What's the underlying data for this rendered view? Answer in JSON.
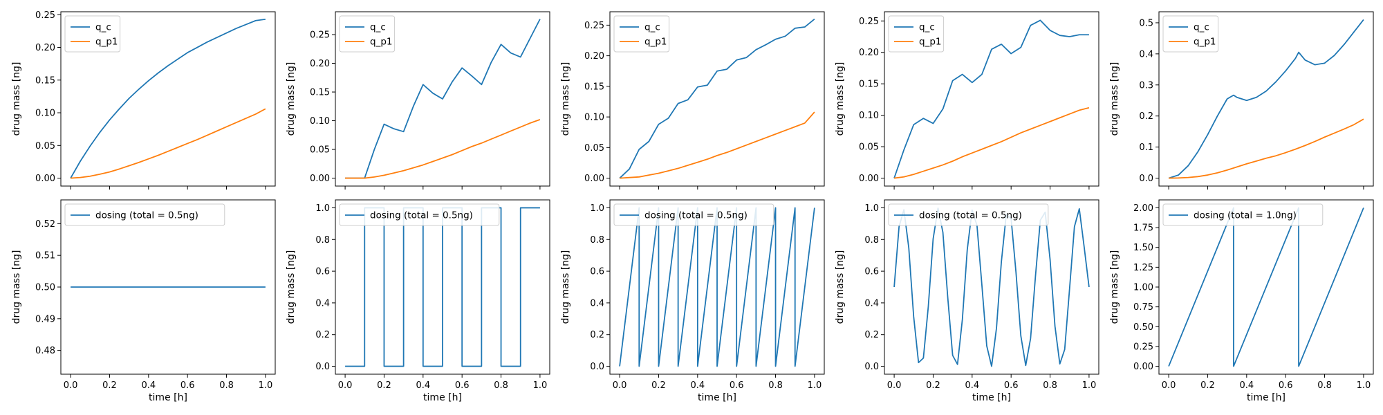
{
  "colors": {
    "blue": "#1f77b4",
    "orange": "#ff7f0e"
  },
  "chart_data": [
    {
      "type": "line",
      "row": 0,
      "col": 0,
      "xlim": [
        -0.05,
        1.05
      ],
      "ylim": [
        -0.0121,
        0.2545
      ],
      "yticks": [
        0.0,
        0.05,
        0.1,
        0.15,
        0.2,
        0.25
      ],
      "ytick_decimals": 2,
      "xticks": [
        0.0,
        0.2,
        0.4,
        0.6,
        0.8,
        1.0
      ],
      "show_xticklabels": false,
      "xlabel": "",
      "ylabel": "drug mass [ng]",
      "grid": false,
      "legend_loc": "upper-left",
      "series": [
        {
          "name": "q_c",
          "color": "#1f77b4",
          "x": [
            0,
            0.05,
            0.1,
            0.15,
            0.2,
            0.25,
            0.3,
            0.35,
            0.4,
            0.45,
            0.5,
            0.55,
            0.6,
            0.65,
            0.7,
            0.75,
            0.8,
            0.85,
            0.9,
            0.95,
            1.0
          ],
          "y": [
            0,
            0.026,
            0.049,
            0.07,
            0.089,
            0.106,
            0.122,
            0.136,
            0.149,
            0.161,
            0.172,
            0.182,
            0.192,
            0.2,
            0.208,
            0.215,
            0.222,
            0.229,
            0.235,
            0.241,
            0.243
          ]
        },
        {
          "name": "q_p1",
          "color": "#ff7f0e",
          "x": [
            0,
            0.05,
            0.1,
            0.15,
            0.2,
            0.25,
            0.3,
            0.35,
            0.4,
            0.45,
            0.5,
            0.55,
            0.6,
            0.65,
            0.7,
            0.75,
            0.8,
            0.85,
            0.9,
            0.95,
            1.0
          ],
          "y": [
            0,
            0.001,
            0.003,
            0.006,
            0.0095,
            0.014,
            0.019,
            0.024,
            0.0295,
            0.035,
            0.041,
            0.047,
            0.053,
            0.059,
            0.0655,
            0.072,
            0.0785,
            0.085,
            0.0915,
            0.098,
            0.106
          ]
        }
      ]
    },
    {
      "type": "line",
      "row": 0,
      "col": 1,
      "xlim": [
        -0.05,
        1.05
      ],
      "ylim": [
        -0.0138,
        0.2898
      ],
      "yticks": [
        0.0,
        0.05,
        0.1,
        0.15,
        0.2,
        0.25
      ],
      "ytick_decimals": 2,
      "xticks": [
        0.0,
        0.2,
        0.4,
        0.6,
        0.8,
        1.0
      ],
      "show_xticklabels": false,
      "xlabel": "",
      "ylabel": "drug mass [ng]",
      "grid": false,
      "legend_loc": "upper-left",
      "series": [
        {
          "name": "q_c",
          "color": "#1f77b4",
          "x": [
            0,
            0.1,
            0.15,
            0.2,
            0.25,
            0.3,
            0.35,
            0.4,
            0.45,
            0.5,
            0.55,
            0.6,
            0.65,
            0.7,
            0.75,
            0.8,
            0.85,
            0.9,
            0.95,
            1.0
          ],
          "y": [
            0,
            0,
            0.05,
            0.094,
            0.086,
            0.081,
            0.125,
            0.163,
            0.148,
            0.138,
            0.168,
            0.192,
            0.178,
            0.163,
            0.202,
            0.233,
            0.218,
            0.211,
            0.244,
            0.277
          ]
        },
        {
          "name": "q_p1",
          "color": "#ff7f0e",
          "x": [
            0,
            0.1,
            0.15,
            0.2,
            0.25,
            0.3,
            0.35,
            0.4,
            0.45,
            0.5,
            0.55,
            0.6,
            0.65,
            0.7,
            0.75,
            0.8,
            0.85,
            0.9,
            0.95,
            1.0
          ],
          "y": [
            0,
            0,
            0.002,
            0.005,
            0.009,
            0.013,
            0.018,
            0.023,
            0.029,
            0.035,
            0.041,
            0.048,
            0.055,
            0.061,
            0.068,
            0.075,
            0.082,
            0.089,
            0.096,
            0.102
          ]
        }
      ]
    },
    {
      "type": "line",
      "row": 0,
      "col": 2,
      "xlim": [
        -0.05,
        1.05
      ],
      "ylim": [
        -0.0129,
        0.2719
      ],
      "yticks": [
        0.0,
        0.05,
        0.1,
        0.15,
        0.2,
        0.25
      ],
      "ytick_decimals": 2,
      "xticks": [
        0.0,
        0.2,
        0.4,
        0.6,
        0.8,
        1.0
      ],
      "show_xticklabels": false,
      "xlabel": "",
      "ylabel": "drug mass [ng]",
      "grid": false,
      "legend_loc": "upper-left",
      "series": [
        {
          "name": "q_c",
          "color": "#1f77b4",
          "x": [
            0,
            0.05,
            0.1,
            0.15,
            0.2,
            0.25,
            0.3,
            0.35,
            0.4,
            0.45,
            0.5,
            0.55,
            0.6,
            0.65,
            0.7,
            0.75,
            0.8,
            0.85,
            0.9,
            0.95,
            1.0
          ],
          "y": [
            0,
            0.015,
            0.047,
            0.06,
            0.088,
            0.098,
            0.122,
            0.128,
            0.149,
            0.152,
            0.175,
            0.178,
            0.193,
            0.197,
            0.21,
            0.218,
            0.227,
            0.232,
            0.245,
            0.247,
            0.26
          ]
        },
        {
          "name": "q_p1",
          "color": "#ff7f0e",
          "x": [
            0,
            0.05,
            0.1,
            0.15,
            0.2,
            0.25,
            0.3,
            0.35,
            0.4,
            0.45,
            0.5,
            0.55,
            0.6,
            0.65,
            0.7,
            0.75,
            0.8,
            0.85,
            0.9,
            0.95,
            1.0
          ],
          "y": [
            0,
            0.001,
            0.002,
            0.005,
            0.008,
            0.012,
            0.016,
            0.021,
            0.026,
            0.031,
            0.037,
            0.042,
            0.048,
            0.054,
            0.06,
            0.066,
            0.072,
            0.078,
            0.084,
            0.09,
            0.108
          ]
        }
      ]
    },
    {
      "type": "line",
      "row": 0,
      "col": 3,
      "xlim": [
        -0.05,
        1.05
      ],
      "ylim": [
        -0.0126,
        0.2646
      ],
      "yticks": [
        0.0,
        0.05,
        0.1,
        0.15,
        0.2,
        0.25
      ],
      "ytick_decimals": 2,
      "xticks": [
        0.0,
        0.2,
        0.4,
        0.6,
        0.8,
        1.0
      ],
      "show_xticklabels": false,
      "xlabel": "",
      "ylabel": "drug mass [ng]",
      "grid": false,
      "legend_loc": "upper-left",
      "series": [
        {
          "name": "q_c",
          "color": "#1f77b4",
          "x": [
            0,
            0.05,
            0.1,
            0.15,
            0.2,
            0.25,
            0.3,
            0.35,
            0.4,
            0.45,
            0.5,
            0.55,
            0.6,
            0.65,
            0.7,
            0.75,
            0.8,
            0.85,
            0.9,
            0.95,
            1.0
          ],
          "y": [
            0,
            0.045,
            0.085,
            0.095,
            0.087,
            0.11,
            0.155,
            0.165,
            0.152,
            0.165,
            0.205,
            0.213,
            0.198,
            0.208,
            0.243,
            0.251,
            0.235,
            0.227,
            0.225,
            0.228,
            0.228
          ]
        },
        {
          "name": "q_p1",
          "color": "#ff7f0e",
          "x": [
            0,
            0.05,
            0.1,
            0.15,
            0.2,
            0.25,
            0.3,
            0.35,
            0.4,
            0.45,
            0.5,
            0.55,
            0.6,
            0.65,
            0.7,
            0.75,
            0.8,
            0.85,
            0.9,
            0.95,
            1.0
          ],
          "y": [
            0,
            0.002,
            0.006,
            0.011,
            0.016,
            0.021,
            0.027,
            0.034,
            0.04,
            0.046,
            0.052,
            0.058,
            0.065,
            0.072,
            0.078,
            0.084,
            0.09,
            0.096,
            0.102,
            0.108,
            0.112
          ]
        }
      ]
    },
    {
      "type": "line",
      "row": 0,
      "col": 4,
      "xlim": [
        -0.05,
        1.05
      ],
      "ylim": [
        -0.0255,
        0.5355
      ],
      "yticks": [
        0.0,
        0.1,
        0.2,
        0.3,
        0.4,
        0.5
      ],
      "ytick_decimals": 1,
      "xticks": [
        0.0,
        0.2,
        0.4,
        0.6,
        0.8,
        1.0
      ],
      "show_xticklabels": false,
      "xlabel": "",
      "ylabel": "drug mass [ng]",
      "grid": false,
      "legend_loc": "upper-left",
      "series": [
        {
          "name": "q_c",
          "color": "#1f77b4",
          "x": [
            0,
            0.05,
            0.1,
            0.15,
            0.2,
            0.25,
            0.3,
            0.333,
            0.35,
            0.4,
            0.45,
            0.5,
            0.55,
            0.6,
            0.65,
            0.667,
            0.7,
            0.75,
            0.8,
            0.85,
            0.9,
            0.95,
            1.0
          ],
          "y": [
            0,
            0.01,
            0.04,
            0.085,
            0.14,
            0.2,
            0.255,
            0.267,
            0.26,
            0.25,
            0.26,
            0.28,
            0.31,
            0.345,
            0.385,
            0.405,
            0.38,
            0.365,
            0.37,
            0.395,
            0.43,
            0.47,
            0.51
          ]
        },
        {
          "name": "q_p1",
          "color": "#ff7f0e",
          "x": [
            0,
            0.05,
            0.1,
            0.15,
            0.2,
            0.25,
            0.3,
            0.35,
            0.4,
            0.45,
            0.5,
            0.55,
            0.6,
            0.65,
            0.7,
            0.75,
            0.8,
            0.85,
            0.9,
            0.95,
            1.0
          ],
          "y": [
            0,
            0.0005,
            0.002,
            0.005,
            0.01,
            0.017,
            0.026,
            0.036,
            0.046,
            0.055,
            0.064,
            0.072,
            0.082,
            0.093,
            0.105,
            0.118,
            0.132,
            0.145,
            0.158,
            0.172,
            0.19
          ]
        }
      ]
    },
    {
      "type": "line",
      "row": 1,
      "col": 0,
      "xlim": [
        -0.05,
        1.05
      ],
      "ylim": [
        0.4725,
        0.5275
      ],
      "yticks": [
        0.48,
        0.49,
        0.5,
        0.51,
        0.52
      ],
      "ytick_decimals": 2,
      "xticks": [
        0.0,
        0.2,
        0.4,
        0.6,
        0.8,
        1.0
      ],
      "show_xticklabels": true,
      "xlabel": "time [h]",
      "ylabel": "drug mass [ng]",
      "grid": false,
      "legend_loc": "upper-left",
      "series": [
        {
          "name": "dosing (total = 0.5ng)",
          "color": "#1f77b4",
          "x": [
            0,
            1.0
          ],
          "y": [
            0.5,
            0.5
          ]
        }
      ]
    },
    {
      "type": "line",
      "row": 1,
      "col": 1,
      "xlim": [
        -0.05,
        1.05
      ],
      "ylim": [
        -0.05,
        1.05
      ],
      "yticks": [
        0.0,
        0.2,
        0.4,
        0.6,
        0.8,
        1.0
      ],
      "ytick_decimals": 1,
      "xticks": [
        0.0,
        0.2,
        0.4,
        0.6,
        0.8,
        1.0
      ],
      "show_xticklabels": true,
      "xlabel": "time [h]",
      "ylabel": "drug mass [ng]",
      "grid": false,
      "legend_loc": "upper-left",
      "series": [
        {
          "name": "dosing (total = 0.5ng)",
          "color": "#1f77b4",
          "x": [
            0,
            0.1,
            0.1,
            0.2,
            0.2,
            0.3,
            0.3,
            0.4,
            0.4,
            0.5,
            0.5,
            0.6,
            0.6,
            0.7,
            0.7,
            0.8,
            0.8,
            0.9,
            0.9,
            1.0
          ],
          "y": [
            0,
            0,
            1,
            1,
            0,
            0,
            1,
            1,
            0,
            0,
            1,
            1,
            0,
            0,
            1,
            1,
            0,
            0,
            1,
            1
          ]
        }
      ]
    },
    {
      "type": "line",
      "row": 1,
      "col": 2,
      "xlim": [
        -0.05,
        1.05
      ],
      "ylim": [
        -0.05,
        1.05
      ],
      "yticks": [
        0.0,
        0.2,
        0.4,
        0.6,
        0.8,
        1.0
      ],
      "ytick_decimals": 1,
      "xticks": [
        0.0,
        0.2,
        0.4,
        0.6,
        0.8,
        1.0
      ],
      "show_xticklabels": true,
      "xlabel": "time [h]",
      "ylabel": "drug mass [ng]",
      "grid": false,
      "legend_loc": "upper-left",
      "series": [
        {
          "name": "dosing (total = 0.5ng)",
          "color": "#1f77b4",
          "x": [
            0,
            0.1,
            0.1,
            0.2,
            0.2,
            0.3,
            0.3,
            0.4,
            0.4,
            0.5,
            0.5,
            0.6,
            0.6,
            0.7,
            0.7,
            0.8,
            0.8,
            0.9,
            0.9,
            1.0
          ],
          "y": [
            0,
            1,
            0,
            1,
            0,
            1,
            0,
            1,
            0,
            1,
            0,
            1,
            0,
            1,
            0,
            1,
            0,
            1,
            0,
            1
          ]
        }
      ]
    },
    {
      "type": "line",
      "row": 1,
      "col": 3,
      "xlim": [
        -0.05,
        1.05
      ],
      "ylim": [
        -0.05,
        1.05
      ],
      "yticks": [
        0.0,
        0.2,
        0.4,
        0.6,
        0.8,
        1.0
      ],
      "ytick_decimals": 1,
      "xticks": [
        0.0,
        0.2,
        0.4,
        0.6,
        0.8,
        1.0
      ],
      "show_xticklabels": true,
      "xlabel": "time [h]",
      "ylabel": "drug mass [ng]",
      "grid": false,
      "legend_loc": "upper-left",
      "series": [
        {
          "name": "dosing (total = 0.5ng)",
          "color": "#1f77b4",
          "x": [
            0,
            0.025,
            0.05,
            0.075,
            0.1,
            0.125,
            0.15,
            0.175,
            0.2,
            0.225,
            0.25,
            0.275,
            0.3,
            0.325,
            0.35,
            0.375,
            0.4,
            0.425,
            0.45,
            0.475,
            0.5,
            0.525,
            0.55,
            0.575,
            0.6,
            0.625,
            0.65,
            0.675,
            0.7,
            0.725,
            0.75,
            0.775,
            0.8,
            0.825,
            0.85,
            0.875,
            0.9,
            0.925,
            0.95,
            0.975,
            1.0
          ],
          "y": [
            0.5,
            0.881,
            0.988,
            0.747,
            0.314,
            0.023,
            0.052,
            0.375,
            0.804,
            0.998,
            0.845,
            0.433,
            0.069,
            0.012,
            0.296,
            0.735,
            0.986,
            0.888,
            0.514,
            0.129,
            0.0,
            0.241,
            0.658,
            0.956,
            0.933,
            0.594,
            0.192,
            0.005,
            0.176,
            0.568,
            0.922,
            0.972,
            0.674,
            0.254,
            0.015,
            0.106,
            0.489,
            0.881,
            0.994,
            0.752,
            0.5
          ]
        }
      ]
    },
    {
      "type": "line",
      "row": 1,
      "col": 4,
      "xlim": [
        -0.05,
        1.05
      ],
      "ylim": [
        -0.1,
        2.1
      ],
      "yticks": [
        0.0,
        0.25,
        0.5,
        0.75,
        1.0,
        1.25,
        1.5,
        1.75,
        2.0
      ],
      "ytick_decimals": 2,
      "xticks": [
        0.0,
        0.2,
        0.4,
        0.6,
        0.8,
        1.0
      ],
      "show_xticklabels": true,
      "xlabel": "time [h]",
      "ylabel": "drug mass [ng]",
      "grid": false,
      "legend_loc": "upper-left",
      "series": [
        {
          "name": "dosing (total = 1.0ng)",
          "color": "#1f77b4",
          "x": [
            0,
            0.333,
            0.333,
            0.667,
            0.667,
            1.0
          ],
          "y": [
            0,
            2.0,
            0,
            2.0,
            0,
            2.0
          ]
        }
      ]
    }
  ]
}
